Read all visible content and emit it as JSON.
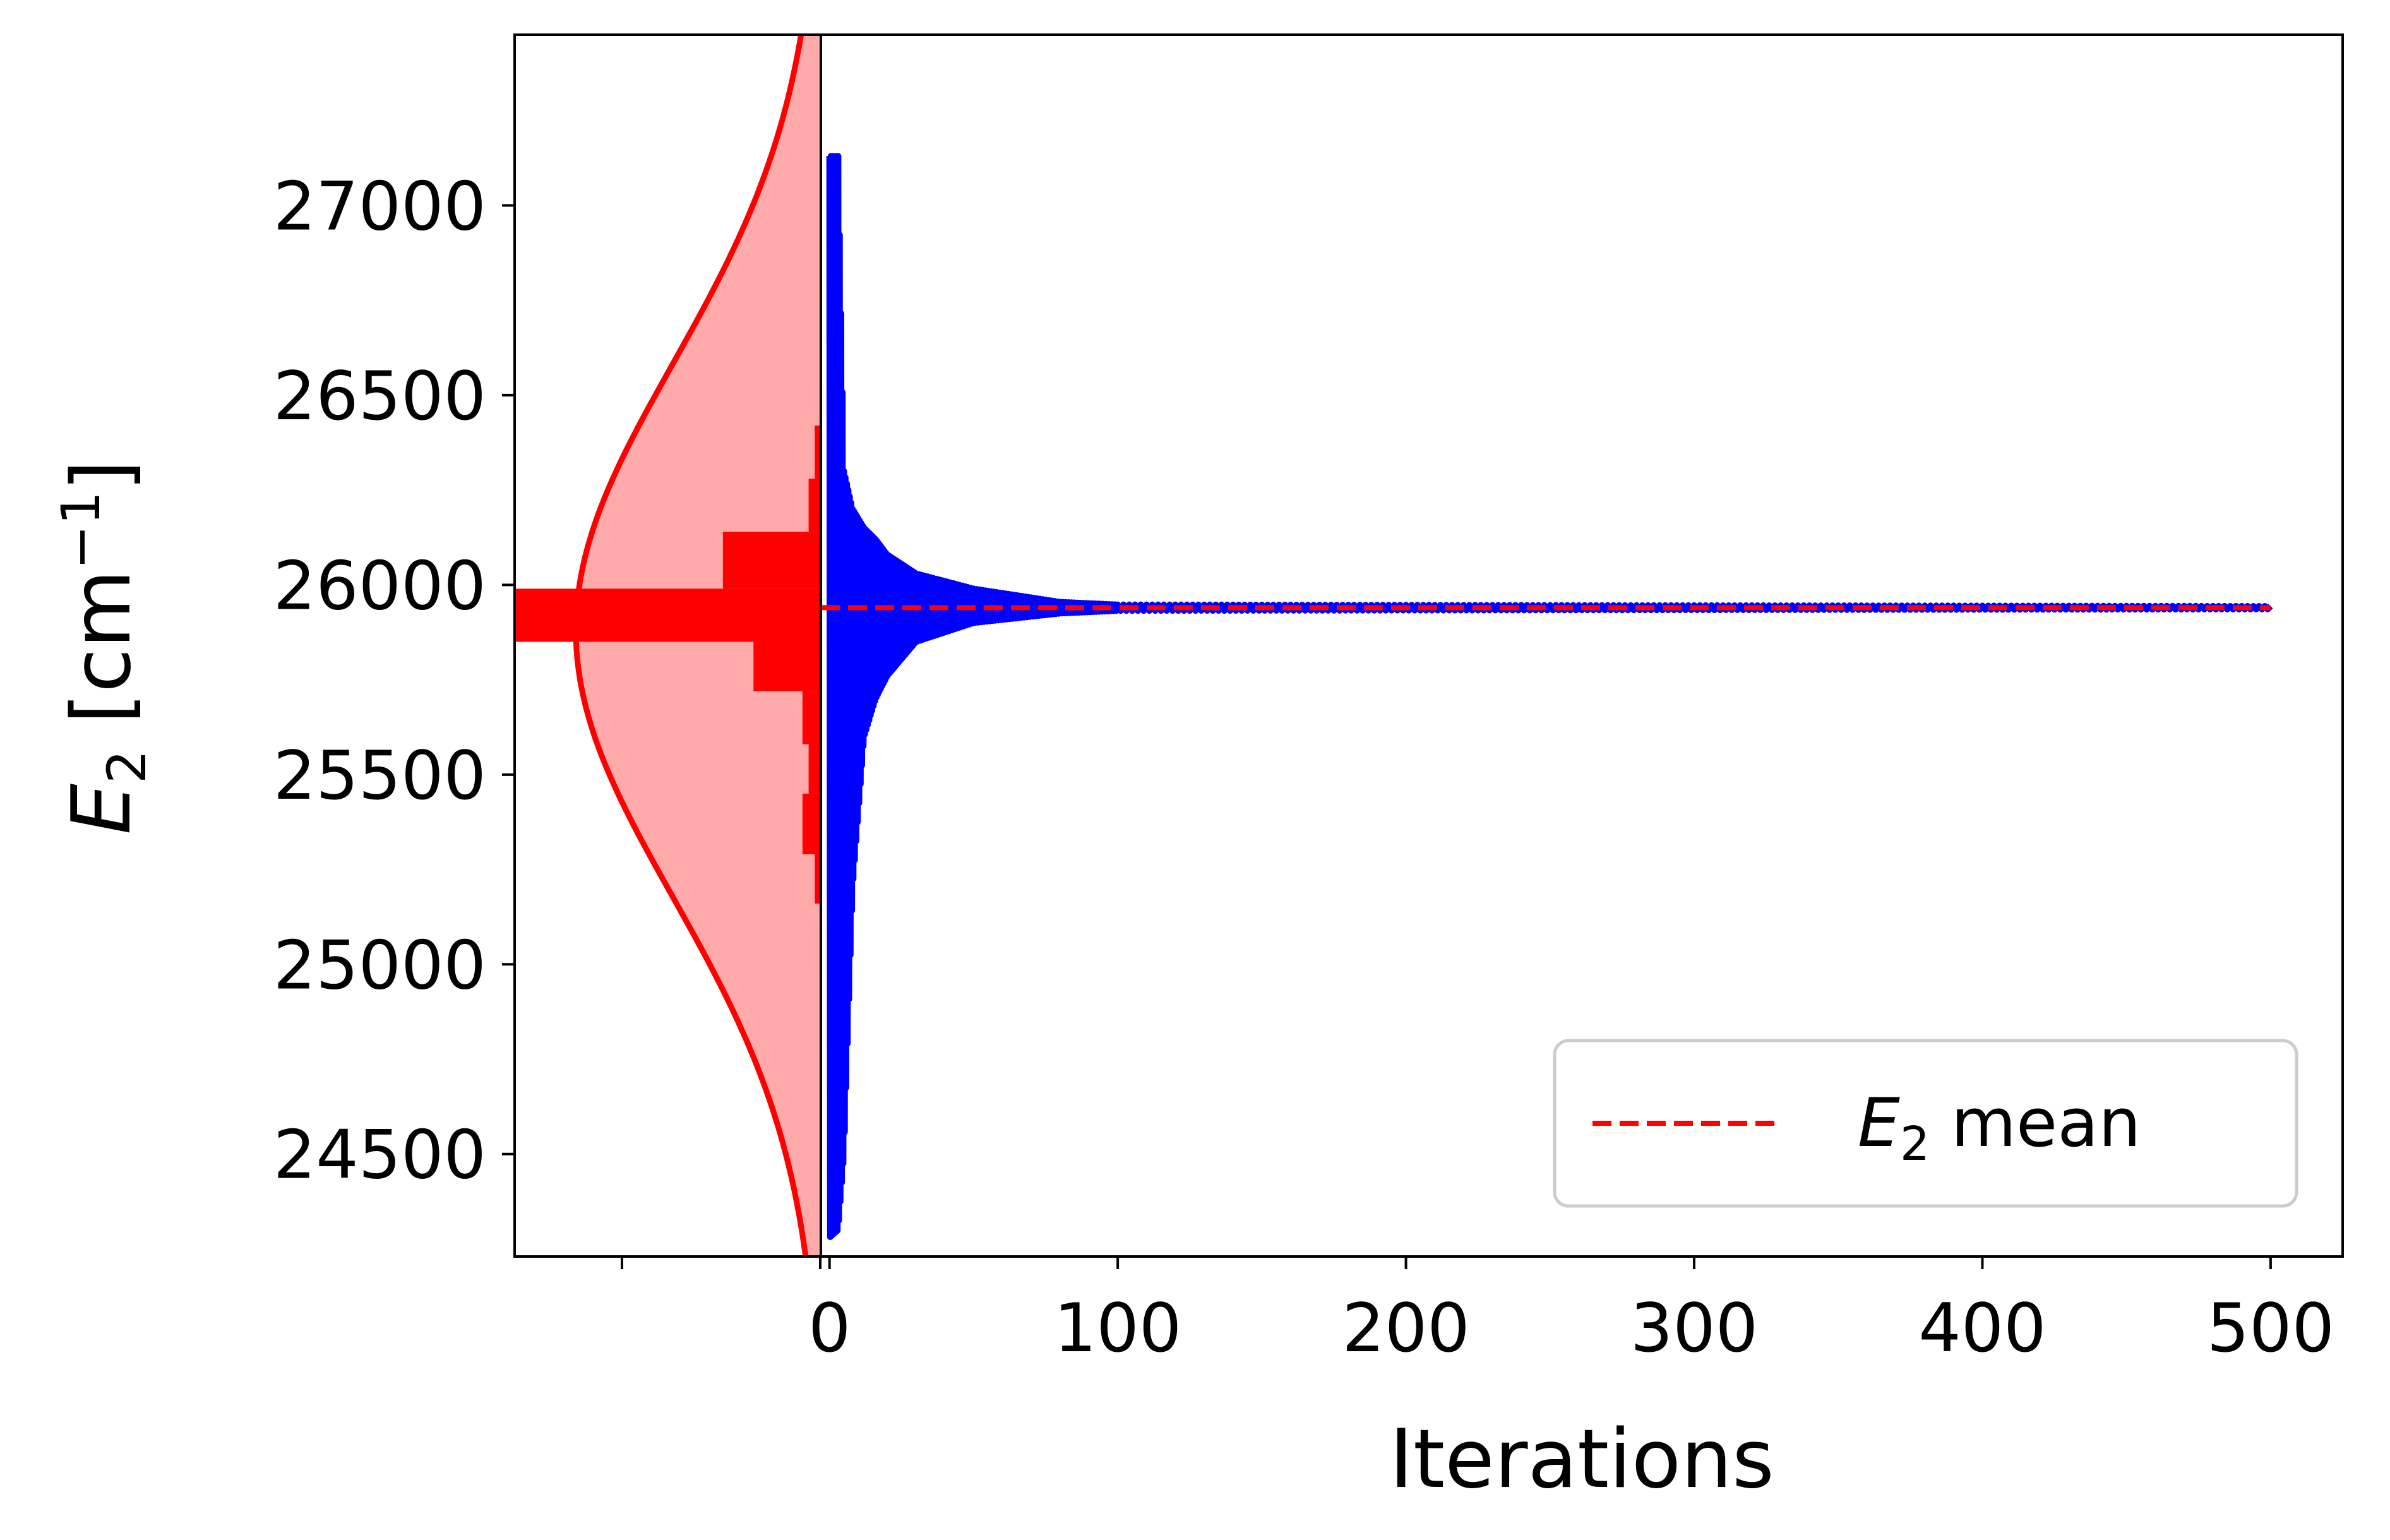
{
  "chart_data": {
    "type": "line",
    "xlabel": "Iterations",
    "ylabel": {
      "symbol": "E",
      "subscript": "2",
      "unit_open": " [cm",
      "unit_exp": "−1",
      "unit_close": "]"
    },
    "xlim": [
      -3,
      525
    ],
    "ylim": [
      24230,
      27450
    ],
    "x_ticks": [
      0,
      100,
      200,
      300,
      400,
      500
    ],
    "x_tick_labels": [
      "0",
      "100",
      "200",
      "300",
      "400",
      "500"
    ],
    "y_ticks": [
      24500,
      25000,
      25500,
      26000,
      26500,
      27000
    ],
    "y_tick_labels": [
      "24500",
      "25000",
      "25500",
      "26000",
      "26500",
      "27000"
    ],
    "grid": false,
    "legend": {
      "position": "lower-right",
      "entry": {
        "symbol": "E",
        "subscript": "2",
        "text": " mean"
      }
    },
    "mean_line": {
      "name": "E2 mean",
      "value": 25940,
      "x_range": [
        -3,
        500
      ],
      "color": "#ff0000",
      "style": "dashed"
    },
    "trace": {
      "color": "#0000ff",
      "amplitude_envelope": [
        {
          "x": 0,
          "low": 24280,
          "high": 27130
        },
        {
          "x": 3,
          "low": 24300,
          "high": 27130
        },
        {
          "x": 5,
          "low": 24500,
          "high": 26300
        },
        {
          "x": 8,
          "low": 25200,
          "high": 26200
        },
        {
          "x": 12,
          "low": 25600,
          "high": 26150
        },
        {
          "x": 16,
          "low": 25700,
          "high": 26120
        },
        {
          "x": 20,
          "low": 25760,
          "high": 26080
        },
        {
          "x": 30,
          "low": 25850,
          "high": 26030
        },
        {
          "x": 50,
          "low": 25900,
          "high": 25990
        },
        {
          "x": 80,
          "low": 25925,
          "high": 25955
        },
        {
          "x": 100,
          "low": 25932,
          "high": 25948
        },
        {
          "x": 500,
          "low": 25936,
          "high": 25944
        }
      ]
    },
    "marginal": {
      "histogram_color": "#ff0000",
      "kde_line_color": "#ff0000",
      "kde_fill_color": "#ffaaaa",
      "kde_center": 25880,
      "kde_sigma": 700,
      "kde_peak": 0.8,
      "histogram_bins": [
        {
          "y0": 25160,
          "y1": 25290,
          "width": 0.02
        },
        {
          "y0": 25290,
          "y1": 25450,
          "width": 0.06
        },
        {
          "y0": 25450,
          "y1": 25580,
          "width": 0.04
        },
        {
          "y0": 25580,
          "y1": 25720,
          "width": 0.06
        },
        {
          "y0": 25720,
          "y1": 25850,
          "width": 0.22
        },
        {
          "y0": 25850,
          "y1": 25990,
          "width": 1.0
        },
        {
          "y0": 25990,
          "y1": 26140,
          "width": 0.32
        },
        {
          "y0": 26140,
          "y1": 26280,
          "width": 0.04
        },
        {
          "y0": 26280,
          "y1": 26420,
          "width": 0.02
        }
      ]
    }
  }
}
